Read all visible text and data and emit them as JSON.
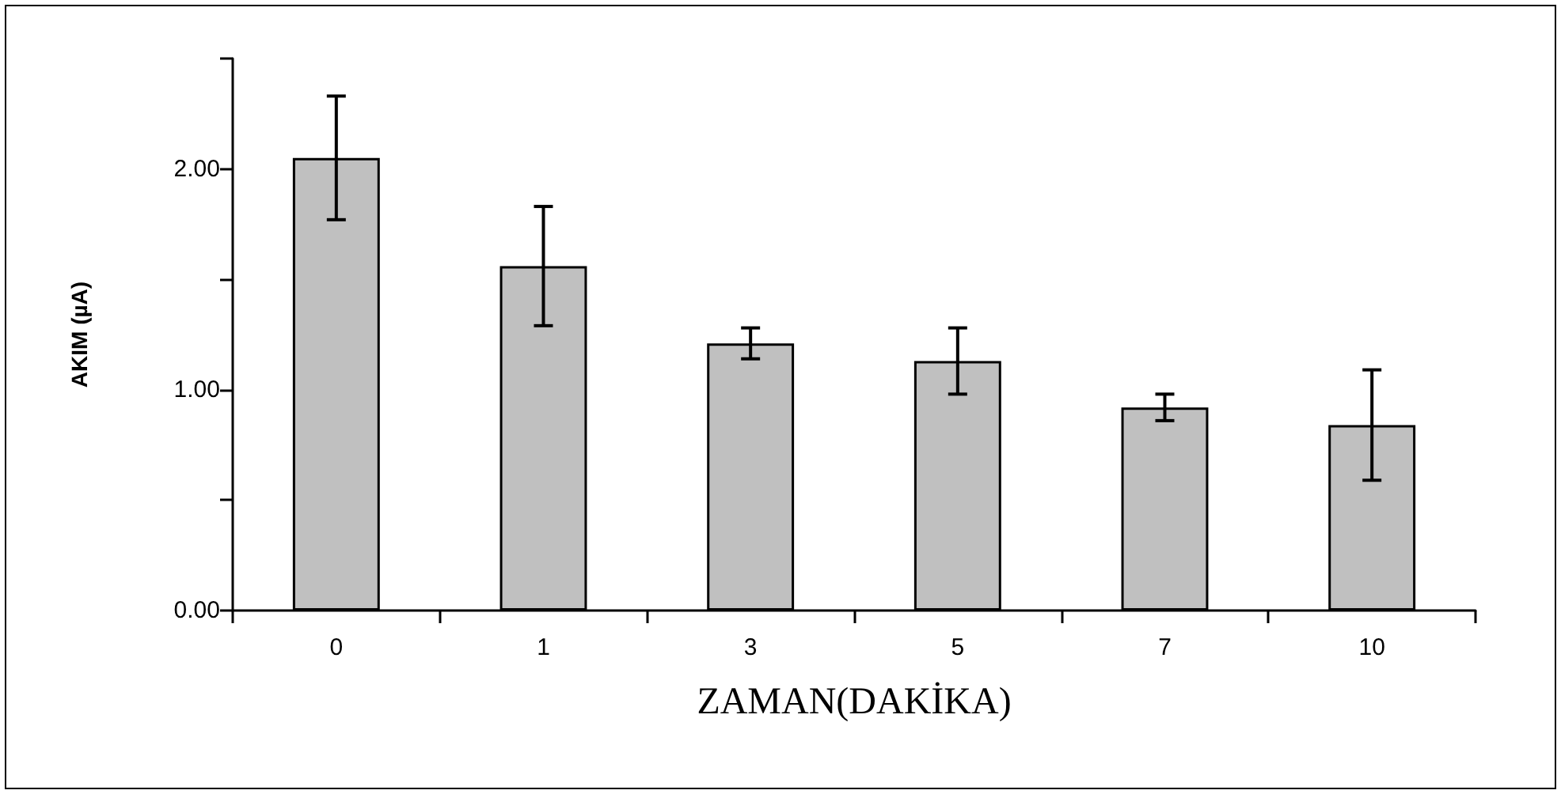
{
  "chart_data": {
    "type": "bar",
    "xlabel": "ZAMAN(DAKİKA)",
    "ylabel": "AKIM (µA)",
    "categories": [
      "0",
      "1",
      "3",
      "5",
      "7",
      "10"
    ],
    "values": [
      2.05,
      1.56,
      1.21,
      1.13,
      0.92,
      0.84
    ],
    "errors": [
      0.28,
      0.27,
      0.07,
      0.15,
      0.06,
      0.25
    ],
    "color": "#c0c0c0",
    "ylim": [
      0,
      2.5
    ],
    "yticks": [
      {
        "value": 0,
        "label": "0.00"
      },
      {
        "value": 0.5,
        "label": null
      },
      {
        "value": 1,
        "label": "1.00"
      },
      {
        "value": 1.5,
        "label": null
      },
      {
        "value": 2,
        "label": "2.00"
      },
      {
        "value": 2.5,
        "label": null
      }
    ],
    "grid": false
  }
}
